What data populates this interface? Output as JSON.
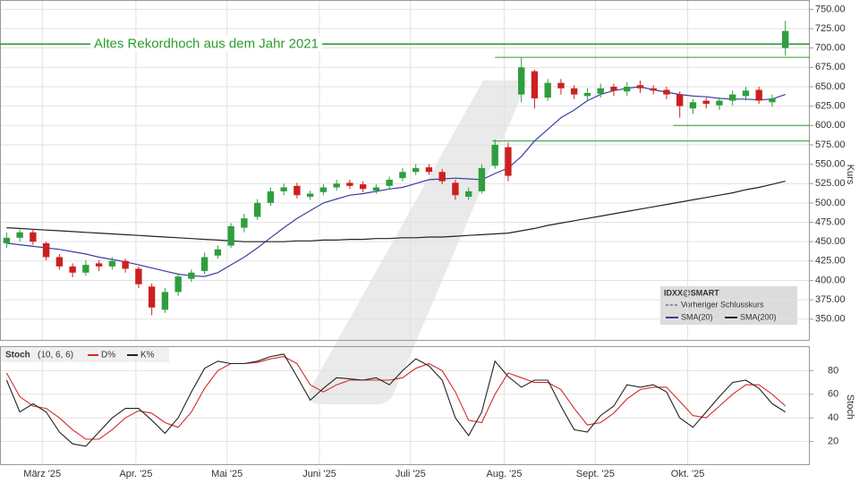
{
  "chart_data": [
    {
      "type": "candlestick",
      "name": "IDXX@SMART",
      "x": [
        0,
        1,
        2,
        3,
        4,
        5,
        6,
        7,
        8,
        9,
        10,
        11,
        12,
        13,
        14,
        15,
        16,
        17,
        18,
        19,
        20,
        21,
        22,
        23,
        24,
        25,
        26,
        27,
        28,
        29,
        30,
        31,
        32,
        33,
        34,
        35,
        36,
        37,
        38,
        39,
        40,
        41,
        42,
        43,
        44,
        45,
        46,
        47,
        48,
        49,
        50,
        51,
        52,
        53,
        54,
        55,
        56,
        57,
        58,
        59
      ],
      "open": [
        448,
        455,
        462,
        448,
        430,
        418,
        410,
        422,
        418,
        425,
        415,
        392,
        362,
        385,
        402,
        412,
        432,
        445,
        468,
        482,
        500,
        515,
        522,
        508,
        514,
        520,
        526,
        524,
        516,
        522,
        532,
        540,
        546,
        540,
        526,
        508,
        515,
        548,
        572,
        640,
        670,
        636,
        655,
        648,
        638,
        641,
        650,
        644,
        652,
        648,
        646,
        640,
        622,
        632,
        626,
        632,
        638,
        646,
        630,
        700
      ],
      "high": [
        462,
        468,
        466,
        450,
        434,
        422,
        426,
        426,
        430,
        428,
        418,
        396,
        390,
        408,
        414,
        436,
        445,
        474,
        486,
        505,
        520,
        525,
        526,
        516,
        524,
        530,
        530,
        528,
        524,
        534,
        545,
        550,
        550,
        544,
        530,
        520,
        550,
        582,
        578,
        688,
        672,
        660,
        660,
        652,
        648,
        654,
        654,
        656,
        658,
        652,
        650,
        644,
        634,
        636,
        636,
        645,
        650,
        650,
        640,
        735
      ],
      "low": [
        442,
        450,
        446,
        426,
        414,
        404,
        406,
        412,
        414,
        410,
        390,
        355,
        358,
        380,
        398,
        408,
        428,
        442,
        462,
        478,
        496,
        510,
        506,
        504,
        510,
        516,
        518,
        514,
        512,
        518,
        528,
        536,
        536,
        524,
        504,
        504,
        512,
        544,
        528,
        630,
        622,
        632,
        640,
        634,
        632,
        636,
        638,
        638,
        642,
        640,
        634,
        610,
        615,
        622,
        620,
        626,
        632,
        628,
        624,
        690
      ],
      "close": [
        455,
        462,
        450,
        430,
        418,
        410,
        420,
        418,
        425,
        415,
        395,
        365,
        385,
        405,
        410,
        430,
        440,
        470,
        480,
        500,
        515,
        520,
        510,
        512,
        520,
        525,
        522,
        518,
        520,
        530,
        540,
        545,
        540,
        528,
        510,
        515,
        545,
        575,
        535,
        675,
        635,
        655,
        648,
        640,
        642,
        648,
        645,
        650,
        648,
        645,
        640,
        625,
        630,
        628,
        632,
        640,
        645,
        632,
        635,
        722
      ],
      "up_color": "#2e9e3e",
      "down_color": "#cc2020",
      "lines": [
        {
          "name": "SMA(20)",
          "color": "#3c3ca8",
          "values": [
            448,
            446,
            444,
            442,
            440,
            437,
            434,
            430,
            427,
            424,
            420,
            416,
            412,
            408,
            406,
            405,
            410,
            420,
            430,
            442,
            455,
            468,
            480,
            490,
            500,
            505,
            510,
            512,
            515,
            518,
            520,
            525,
            530,
            531,
            532,
            531,
            530,
            538,
            545,
            560,
            580,
            595,
            610,
            620,
            632,
            640,
            645,
            648,
            650,
            646,
            643,
            640,
            638,
            637,
            635,
            634,
            634,
            633,
            634,
            640
          ]
        },
        {
          "name": "SMA(200)",
          "color": "#222222",
          "values": [
            468,
            467,
            466,
            465,
            464,
            463,
            462,
            461,
            460,
            459,
            458,
            457,
            456,
            455,
            454,
            453,
            452,
            451,
            450,
            450,
            450,
            450,
            451,
            451,
            452,
            452,
            453,
            453,
            454,
            454,
            455,
            455,
            456,
            456,
            457,
            458,
            459,
            460,
            461,
            464,
            467,
            471,
            474,
            477,
            480,
            483,
            486,
            489,
            492,
            495,
            498,
            501,
            504,
            507,
            510,
            513,
            517,
            520,
            524,
            528
          ]
        }
      ],
      "legend_extra": "Vorheriger Schlusskurs",
      "annotation": {
        "text": "Altes Rekordhoch aus dem Jahr 2021",
        "value": 705,
        "color": "#2a9d2a"
      },
      "levels": [
        {
          "value": 688,
          "x_start": 37
        },
        {
          "value": 580,
          "x_start": 36.8
        },
        {
          "value": 600,
          "x_start": 50.5
        }
      ],
      "ylim": [
        322,
        762
      ],
      "yticks": [
        {
          "value": 350,
          "label": "350.00"
        },
        {
          "value": 375,
          "label": "375.00"
        },
        {
          "value": 400,
          "label": "400.00"
        },
        {
          "value": 425,
          "label": "425.00"
        },
        {
          "value": 450,
          "label": "450.00"
        },
        {
          "value": 475,
          "label": "475.00"
        },
        {
          "value": 500,
          "label": "500.00"
        },
        {
          "value": 525,
          "label": "525.00"
        },
        {
          "value": 550,
          "label": "550.00"
        },
        {
          "value": 575,
          "label": "575.00"
        },
        {
          "value": 600,
          "label": "600.00"
        },
        {
          "value": 625,
          "label": "625.00"
        },
        {
          "value": 650,
          "label": "650.00"
        },
        {
          "value": 675,
          "label": "675.00"
        },
        {
          "value": 700,
          "label": "700.00"
        },
        {
          "value": 725,
          "label": "725.00"
        },
        {
          "value": 750,
          "label": "750.00"
        }
      ],
      "ylabel": "Kurs",
      "xlim": [
        -0.5,
        60.85
      ],
      "grid": true,
      "legend": "lower right"
    },
    {
      "type": "line",
      "title": "Stoch",
      "params": "(10, 6, 6)",
      "x": [
        0,
        1,
        2,
        3,
        4,
        5,
        6,
        7,
        8,
        9,
        10,
        11,
        12,
        13,
        14,
        15,
        16,
        17,
        18,
        19,
        20,
        21,
        22,
        23,
        24,
        25,
        26,
        27,
        28,
        29,
        30,
        31,
        32,
        33,
        34,
        35,
        36,
        37,
        38,
        39,
        40,
        41,
        42,
        43,
        44,
        45,
        46,
        47,
        48,
        49,
        50,
        51,
        52,
        53,
        54,
        55,
        56,
        57,
        58,
        59
      ],
      "series": [
        {
          "name": "D%",
          "color": "#d42a2a",
          "values": [
            78,
            58,
            50,
            48,
            40,
            30,
            22,
            22,
            30,
            40,
            46,
            44,
            36,
            32,
            45,
            65,
            80,
            86,
            86,
            87,
            90,
            92,
            86,
            68,
            62,
            68,
            72,
            72,
            72,
            72,
            74,
            82,
            86,
            80,
            62,
            38,
            36,
            60,
            78,
            74,
            70,
            70,
            64,
            48,
            34,
            36,
            44,
            56,
            64,
            66,
            66,
            54,
            42,
            40,
            50,
            60,
            68,
            68,
            60,
            50
          ]
        },
        {
          "name": "K%",
          "color": "#222222",
          "values": [
            72,
            45,
            52,
            45,
            28,
            18,
            16,
            28,
            40,
            48,
            48,
            38,
            27,
            40,
            62,
            82,
            88,
            86,
            86,
            88,
            92,
            94,
            75,
            55,
            65,
            74,
            73,
            72,
            74,
            68,
            80,
            90,
            84,
            72,
            40,
            25,
            45,
            88,
            75,
            66,
            72,
            72,
            50,
            30,
            28,
            42,
            50,
            68,
            66,
            68,
            62,
            40,
            32,
            45,
            58,
            70,
            72,
            65,
            52,
            45
          ]
        }
      ],
      "ylim": [
        0,
        100
      ],
      "yticks": [
        20,
        40,
        60,
        80
      ],
      "ylabel": "Stoch",
      "xlim": [
        -0.5,
        60.85
      ],
      "xticks": [
        {
          "value": 2.7,
          "label": "März '25"
        },
        {
          "value": 9.8,
          "label": "Apr. '25"
        },
        {
          "value": 16.7,
          "label": "Mai '25"
        },
        {
          "value": 23.7,
          "label": "Juni '25"
        },
        {
          "value": 30.6,
          "label": "Juli '25"
        },
        {
          "value": 37.7,
          "label": "Aug. '25"
        },
        {
          "value": 44.6,
          "label": "Sept. '25"
        },
        {
          "value": 51.6,
          "label": "Okt. '25"
        }
      ],
      "grid": true
    }
  ]
}
